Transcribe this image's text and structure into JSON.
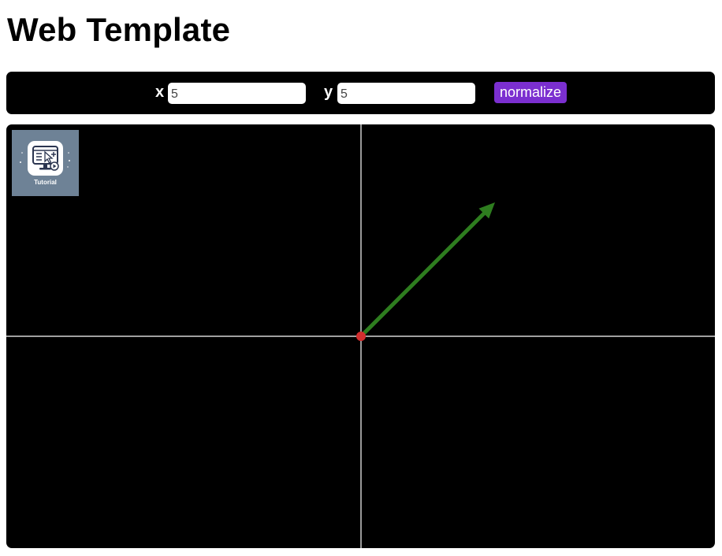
{
  "page": {
    "title": "Web Template"
  },
  "controls": {
    "x_label": "x",
    "x_value": "5",
    "y_label": "y",
    "y_value": "5",
    "normalize_label": "normalize"
  },
  "tutorial": {
    "label": "Tutorial",
    "icon": "tutorial-screen-cursor-icon"
  },
  "canvas": {
    "vector": {
      "x": 5,
      "y": 5
    },
    "colors": {
      "background": "#000000",
      "axes": "#ffffff",
      "vector": "#2e7d1f",
      "origin": "#d32f2f",
      "button": "#7b2fd0"
    }
  }
}
